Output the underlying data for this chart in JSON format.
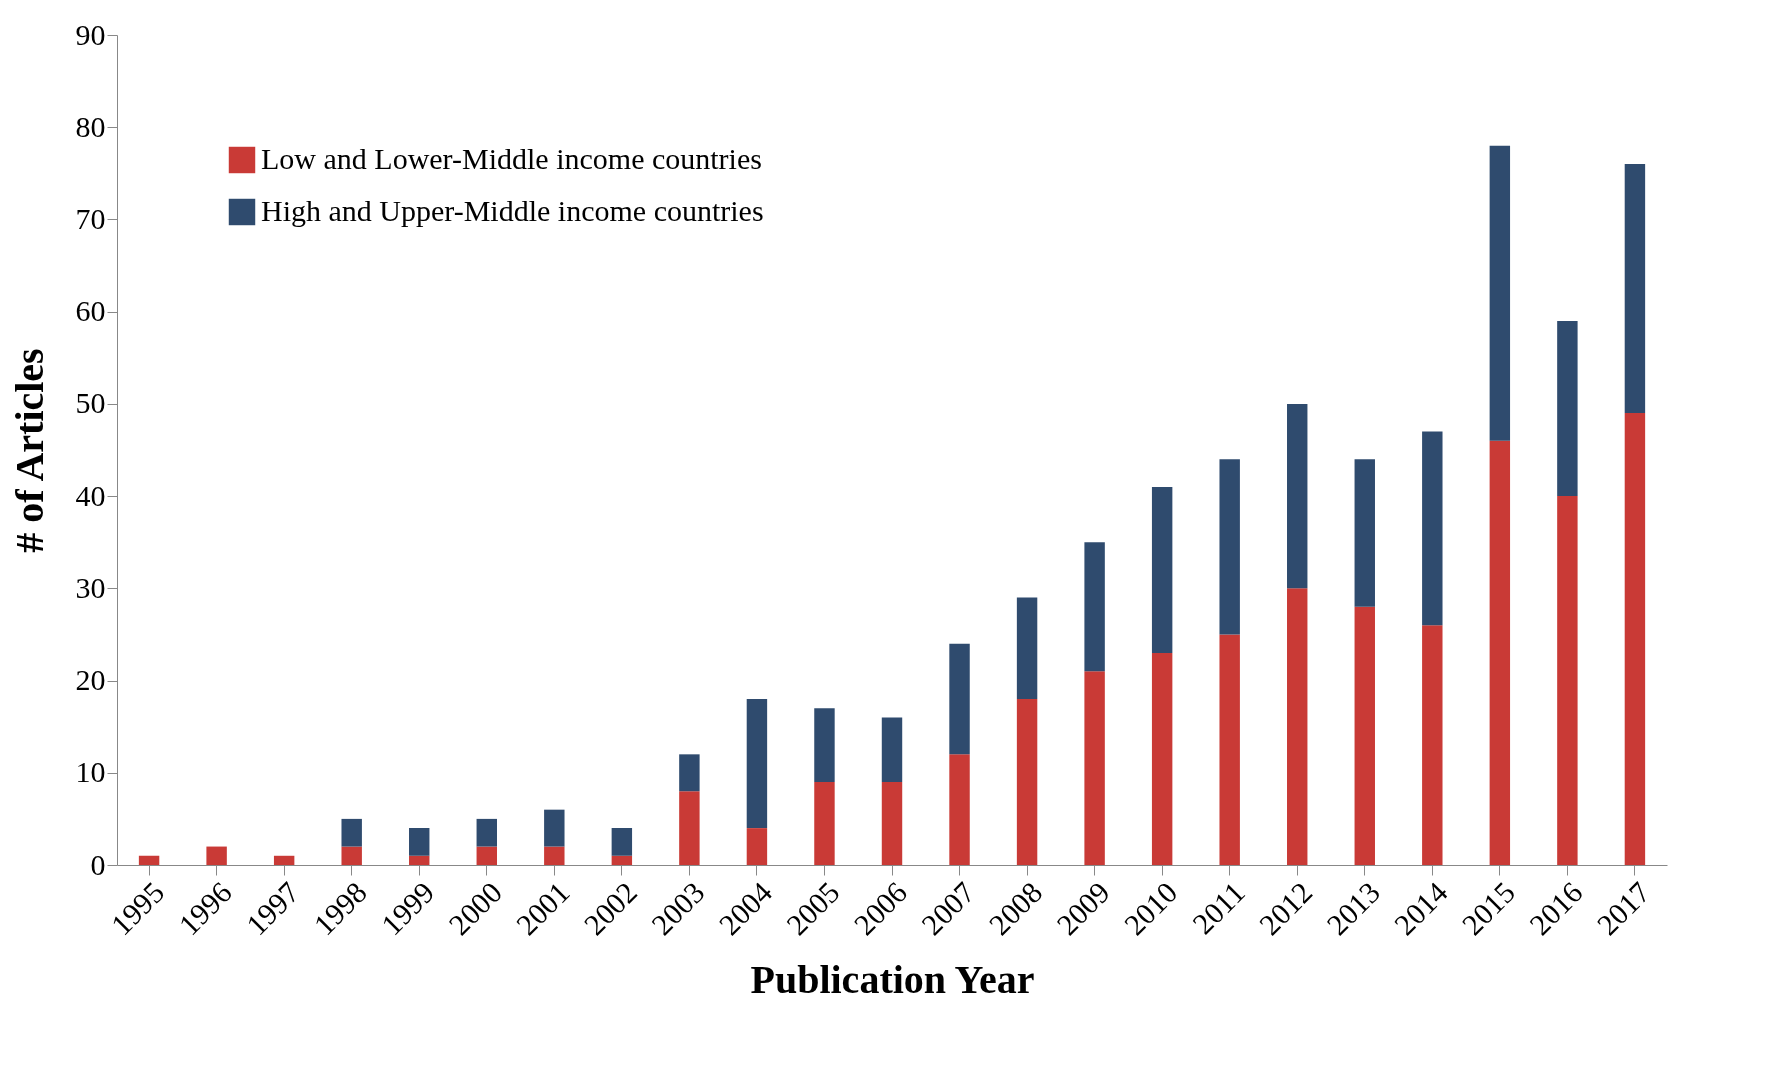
{
  "chart_data": {
    "type": "bar",
    "stacked": true,
    "xlabel": "Publication Year",
    "ylabel": "# of Articles",
    "categories": [
      "1995",
      "1996",
      "1997",
      "1998",
      "1999",
      "2000",
      "2001",
      "2002",
      "2003",
      "2004",
      "2005",
      "2006",
      "2007",
      "2008",
      "2009",
      "2010",
      "2011",
      "2012",
      "2013",
      "2014",
      "2015",
      "2016",
      "2017"
    ],
    "series": [
      {
        "name": "Low and Lower-Middle income countries",
        "color": "#c93a36",
        "values": [
          1,
          2,
          1,
          2,
          1,
          2,
          2,
          1,
          8,
          4,
          9,
          9,
          12,
          18,
          21,
          23,
          25,
          30,
          28,
          26,
          46,
          40,
          49
        ]
      },
      {
        "name": "High and Upper-Middle income countries",
        "color": "#2f4b6e",
        "values": [
          0,
          0,
          0,
          3,
          3,
          3,
          4,
          3,
          4,
          14,
          8,
          7,
          12,
          11,
          14,
          18,
          19,
          20,
          16,
          21,
          32,
          19,
          27
        ]
      }
    ],
    "ylim": [
      0,
      90
    ],
    "yticks": [
      0,
      10,
      20,
      30,
      40,
      50,
      60,
      70,
      80,
      90
    ],
    "grid": false,
    "legend": "top left"
  }
}
